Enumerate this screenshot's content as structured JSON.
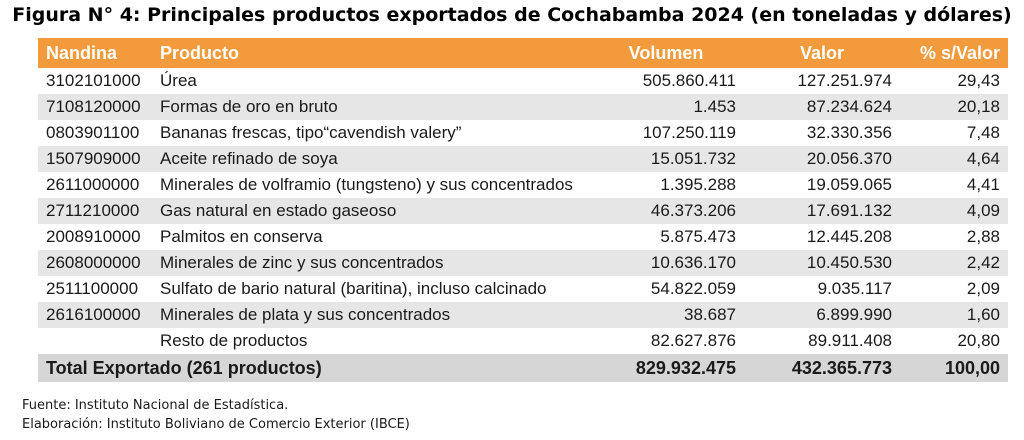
{
  "title": "Figura N° 4: Principales productos exportados de Cochabamba 2024 (en toneladas y dólares)",
  "headers": {
    "code": "Nandina",
    "product": "Producto",
    "volume": "Volumen",
    "value": "Valor",
    "pct": "% s/Valor"
  },
  "rows": [
    {
      "code": "3102101000",
      "product": "Úrea",
      "volume": "505.860.411",
      "value": "127.251.974",
      "pct": "29,43"
    },
    {
      "code": "7108120000",
      "product": "Formas de oro en bruto",
      "volume": "1.453",
      "value": "87.234.624",
      "pct": "20,18"
    },
    {
      "code": "0803901100",
      "product": "Bananas frescas, tipo“cavendish valery”",
      "volume": "107.250.119",
      "value": "32.330.356",
      "pct": "7,48"
    },
    {
      "code": "1507909000",
      "product": "Aceite refinado de soya",
      "volume": "15.051.732",
      "value": "20.056.370",
      "pct": "4,64"
    },
    {
      "code": "2611000000",
      "product": "Minerales de volframio (tungsteno) y sus concentrados",
      "volume": "1.395.288",
      "value": "19.059.065",
      "pct": "4,41"
    },
    {
      "code": "2711210000",
      "product": "Gas natural en estado gaseoso",
      "volume": "46.373.206",
      "value": "17.691.132",
      "pct": "4,09"
    },
    {
      "code": "2008910000",
      "product": "Palmitos en conserva",
      "volume": "5.875.473",
      "value": "12.445.208",
      "pct": "2,88"
    },
    {
      "code": "2608000000",
      "product": "Minerales de zinc y sus concentrados",
      "volume": "10.636.170",
      "value": "10.450.530",
      "pct": "2,42"
    },
    {
      "code": "2511100000",
      "product": "Sulfato de bario natural (baritina), incluso calcinado",
      "volume": "54.822.059",
      "value": "9.035.117",
      "pct": "2,09"
    },
    {
      "code": "2616100000",
      "product": "Minerales de plata y sus concentrados",
      "volume": "38.687",
      "value": "6.899.990",
      "pct": "1,60"
    },
    {
      "code": "",
      "product": "Resto de productos",
      "volume": "82.627.876",
      "value": "89.911.408",
      "pct": "20,80"
    }
  ],
  "total": {
    "label": "Total Exportado (261 productos)",
    "volume": "829.932.475",
    "value": "432.365.773",
    "pct": "100,00"
  },
  "source": "Fuente: Instituto Nacional de Estadística.",
  "elaboration": "Elaboración: Instituto Boliviano de Comercio Exterior (IBCE)",
  "colors": {
    "header_bg": "#f39a3c",
    "stripe": "#e6e6e6",
    "total_bg": "#d6d6d6"
  }
}
